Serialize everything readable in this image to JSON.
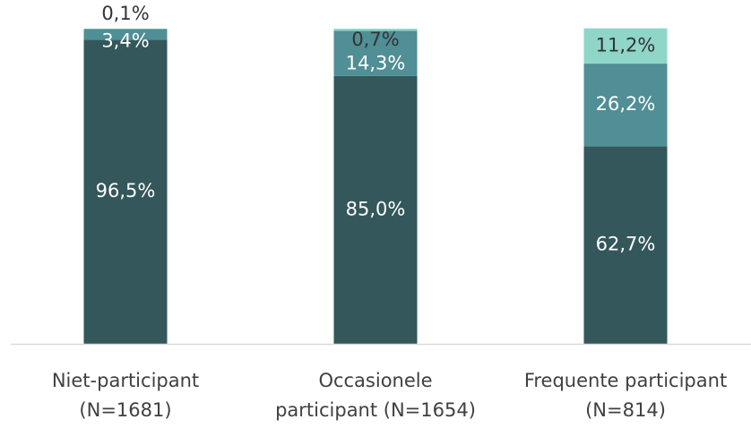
{
  "chart_data": {
    "type": "bar",
    "stacked": true,
    "categories": [
      [
        "Niet-participant",
        "(N=1681)"
      ],
      [
        "Occasionele",
        "participant (N=1654)"
      ],
      [
        "Frequente participant",
        "(N=814)"
      ]
    ],
    "series": [
      {
        "values": [
          96.5,
          85.0,
          62.7
        ],
        "labels": [
          "96,5%",
          "85,0%",
          "62,7%"
        ],
        "color": "#33575a",
        "label_color": "#ffffff"
      },
      {
        "values": [
          3.4,
          14.3,
          26.2
        ],
        "labels": [
          "3,4%",
          "14,3%",
          "26,2%"
        ],
        "color": "#4f8f95",
        "label_color": "#ffffff"
      },
      {
        "values": [
          0.1,
          0.7,
          11.2
        ],
        "labels": [
          "0,1%",
          "0,7%",
          "11,2%"
        ],
        "color": "#8fd6c9",
        "label_color": "#333333"
      }
    ],
    "ylim": [
      0,
      100
    ],
    "legend": "none",
    "grid": false,
    "baseline_color": "#d9d9d9"
  }
}
